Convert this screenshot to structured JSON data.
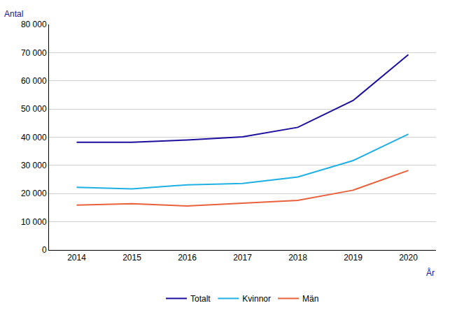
{
  "chart_data": {
    "type": "line",
    "x_label": "År",
    "y_label": "Antal",
    "categories": [
      "2014",
      "2015",
      "2016",
      "2017",
      "2018",
      "2019",
      "2020"
    ],
    "series": [
      {
        "name": "Totalt",
        "color": "#1c0f9e",
        "values": [
          38200,
          38200,
          39000,
          40100,
          43500,
          53000,
          69300
        ]
      },
      {
        "name": "Kvinnor",
        "color": "#1fb0e3",
        "values": [
          22200,
          21700,
          23100,
          23600,
          25900,
          31700,
          41100
        ]
      },
      {
        "name": "Män",
        "color": "#e8613c",
        "values": [
          15900,
          16400,
          15600,
          16600,
          17600,
          21200,
          28200
        ]
      }
    ],
    "ylim": [
      0,
      80000
    ],
    "yticks": [
      0,
      {
        "value": 10000,
        "label": "10 000"
      },
      {
        "value": 20000,
        "label": "20 000"
      },
      {
        "value": 30000,
        "label": "30 000"
      },
      {
        "value": 40000,
        "label": "40 000"
      },
      {
        "value": 50000,
        "label": "50 000"
      },
      {
        "value": 60000,
        "label": "60 000"
      },
      {
        "value": 70000,
        "label": "70 000"
      },
      {
        "value": 80000,
        "label": "80 000"
      }
    ],
    "grid": true,
    "legend": "bottom"
  }
}
